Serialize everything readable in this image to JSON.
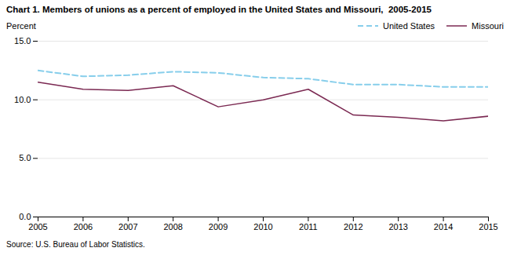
{
  "chart_data": {
    "type": "line",
    "title": "Chart 1. Members of unions as a percent of employed in the United States and Missouri,  2005-2015",
    "ylabel": "Percent",
    "source": "Source: U.S. Bureau of Labor Statistics.",
    "x": [
      2005,
      2006,
      2007,
      2008,
      2009,
      2010,
      2011,
      2012,
      2013,
      2014,
      2015
    ],
    "series": [
      {
        "name": "United States",
        "color": "#87CEEB",
        "line_style": "dashed",
        "values": [
          12.5,
          12.0,
          12.1,
          12.4,
          12.3,
          11.9,
          11.8,
          11.3,
          11.3,
          11.1,
          11.1
        ]
      },
      {
        "name": "Missouri",
        "color": "#7B2952",
        "line_style": "solid",
        "values": [
          11.5,
          10.9,
          10.8,
          11.2,
          9.4,
          10.0,
          10.9,
          8.7,
          8.5,
          8.2,
          8.6
        ]
      }
    ],
    "xlim": [
      2005,
      2015
    ],
    "xticks": [
      2005,
      2006,
      2007,
      2008,
      2009,
      2010,
      2011,
      2012,
      2013,
      2014,
      2015
    ],
    "ylim": [
      0,
      15.0
    ],
    "yticks": [
      {
        "value": 0.0,
        "label": "0.0"
      },
      {
        "value": 5.0,
        "label": "5.0"
      },
      {
        "value": 10.0,
        "label": "10.0"
      },
      {
        "value": 15.0,
        "label": "15.0"
      }
    ],
    "grid": true,
    "legend": "upper right"
  }
}
